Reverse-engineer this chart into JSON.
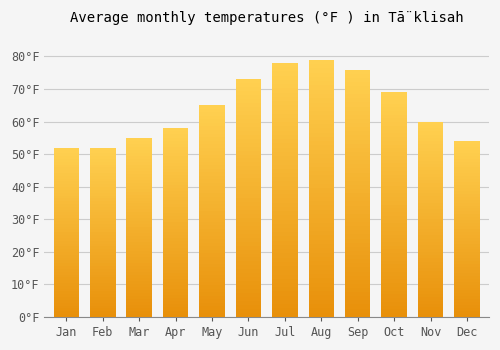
{
  "title": "Average monthly temperatures (°F ) in Tā̈klisah",
  "months": [
    "Jan",
    "Feb",
    "Mar",
    "Apr",
    "May",
    "Jun",
    "Jul",
    "Aug",
    "Sep",
    "Oct",
    "Nov",
    "Dec"
  ],
  "values": [
    52,
    52,
    55,
    58,
    65,
    73,
    78,
    79,
    76,
    69,
    60,
    54
  ],
  "ylim": [
    0,
    88
  ],
  "yticks": [
    0,
    10,
    20,
    30,
    40,
    50,
    60,
    70,
    80
  ],
  "ytick_labels": [
    "0°F",
    "10°F",
    "20°F",
    "30°F",
    "40°F",
    "50°F",
    "60°F",
    "70°F",
    "80°F"
  ],
  "background_color": "#f5f5f5",
  "plot_bg_color": "#f5f5f5",
  "grid_color": "#cccccc",
  "bar_color_bottom": "#E8900A",
  "bar_color_top": "#FFD050",
  "title_fontsize": 10,
  "tick_fontsize": 8.5,
  "bar_width": 0.7,
  "figsize": [
    5.0,
    3.5
  ],
  "dpi": 100
}
